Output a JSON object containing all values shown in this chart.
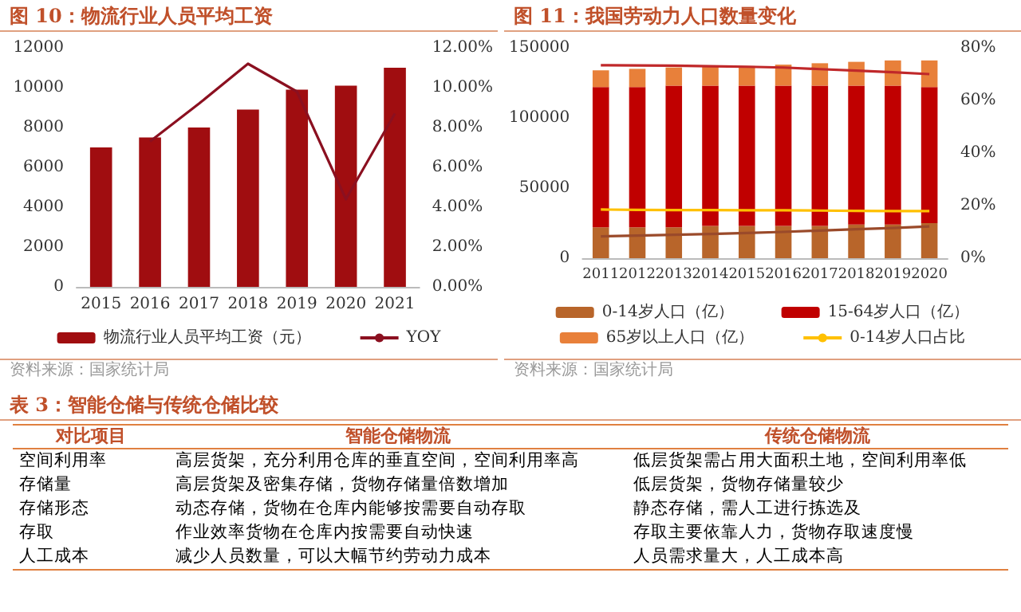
{
  "chart_data": [
    {
      "type": "bar",
      "title": "图 10：物流行业人员平均工资",
      "categories": [
        "2015",
        "2016",
        "2017",
        "2018",
        "2019",
        "2020",
        "2021"
      ],
      "series": [
        {
          "name": "物流行业人员平均工资（元）",
          "color": "#a00d10",
          "values": [
            7000,
            7500,
            8000,
            8900,
            9900,
            10100,
            11000
          ]
        },
        {
          "name": "YOY",
          "type": "line",
          "axis": "y2",
          "color": "#8b1020",
          "values": [
            null,
            7.3,
            9.2,
            11.2,
            9.8,
            4.4,
            8.7
          ]
        }
      ],
      "ylim": [
        0,
        12000
      ],
      "yticks": [
        0,
        2000,
        4000,
        6000,
        8000,
        10000,
        12000
      ],
      "y2lim": [
        0,
        12
      ],
      "y2ticks": [
        {
          "value": 0,
          "label": "0.00%"
        },
        {
          "value": 2,
          "label": "2.00%"
        },
        {
          "value": 4,
          "label": "4.00%"
        },
        {
          "value": 6,
          "label": "6.00%"
        },
        {
          "value": 8,
          "label": "8.00%"
        },
        {
          "value": 10,
          "label": "10.00%"
        },
        {
          "value": 12,
          "label": "12.00%"
        }
      ],
      "marker": "none",
      "legend": "bottom",
      "grid": false,
      "annotations": [
        "资料来源：国家统计局"
      ]
    },
    {
      "type": "bar",
      "title": "图 11：我国劳动力人口数量变化",
      "categories": [
        "2011",
        "2012",
        "2013",
        "2014",
        "2015",
        "2016",
        "2017",
        "2018",
        "2019",
        "2020"
      ],
      "stacked": true,
      "series": [
        {
          "name": "0-14岁人口（亿）",
          "color": "#b8652a",
          "values": [
            22000,
            22000,
            22000,
            23000,
            23000,
            23000,
            23000,
            24000,
            24000,
            25000
          ]
        },
        {
          "name": "15-64岁人口（亿）",
          "color": "#c00000",
          "values": [
            100000,
            100000,
            101000,
            100000,
            100000,
            100000,
            100000,
            99000,
            99000,
            97000
          ]
        },
        {
          "name": "65岁以上人口（亿）",
          "color": "#e8803a",
          "values": [
            12000,
            13000,
            13000,
            14000,
            14000,
            15000,
            16000,
            17000,
            18000,
            19000
          ]
        },
        {
          "name": "0-14岁人口占比",
          "type": "line",
          "axis": "y2",
          "color": "#ffc000",
          "values": [
            18.5,
            18.4,
            18.3,
            18.3,
            18.2,
            18.2,
            18.1,
            18.0,
            17.9,
            17.9
          ]
        },
        {
          "type": "line",
          "axis": "y2",
          "color": "#c0282a",
          "values": [
            73.4,
            73.3,
            73.2,
            73.0,
            72.8,
            72.5,
            71.9,
            71.3,
            70.7,
            70.0
          ]
        },
        {
          "type": "line",
          "axis": "y2",
          "color": "#9a4a2a",
          "values": [
            8.3,
            8.6,
            8.9,
            9.2,
            9.6,
            10.0,
            10.5,
            11.0,
            11.5,
            12.1
          ]
        }
      ],
      "ylim": [
        0,
        150000
      ],
      "yticks": [
        0,
        50000,
        100000,
        150000
      ],
      "y2lim": [
        0,
        80
      ],
      "y2ticks": [
        {
          "value": 0,
          "label": "0%"
        },
        {
          "value": 20,
          "label": "20%"
        },
        {
          "value": 40,
          "label": "40%"
        },
        {
          "value": 60,
          "label": "60%"
        },
        {
          "value": 80,
          "label": "80%"
        }
      ],
      "marker": "none",
      "legend": "bottom",
      "grid": false,
      "annotations": [
        "资料来源：国家统计局"
      ]
    },
    {
      "type": "other",
      "title": "表 3：智能仓储与传统仓储比较",
      "categories": [
        "对比项目",
        "智能仓储物流",
        "传统仓储物流"
      ],
      "annotations": [
        "空间利用率",
        "高层货架，充分利用仓库的垂直空间，空间利用率高",
        "低层货架需占用大面积土地，空间利用率低",
        "存储量",
        "高层货架及密集存储，货物存储量倍数增加",
        "低层货架，货物存储量较少",
        "存储形态",
        "动态存储，货物在仓库内能够按需要自动存取",
        "静态存储，需人工进行拣选及",
        "存取",
        "作业效率货物在仓库内按需要自动快速",
        "存取主要依靠人力，货物存取速度慢",
        "人工成本",
        "减少人员数量，可以大幅节约劳动力成本",
        "人员需求量大，人工成本高"
      ]
    }
  ]
}
